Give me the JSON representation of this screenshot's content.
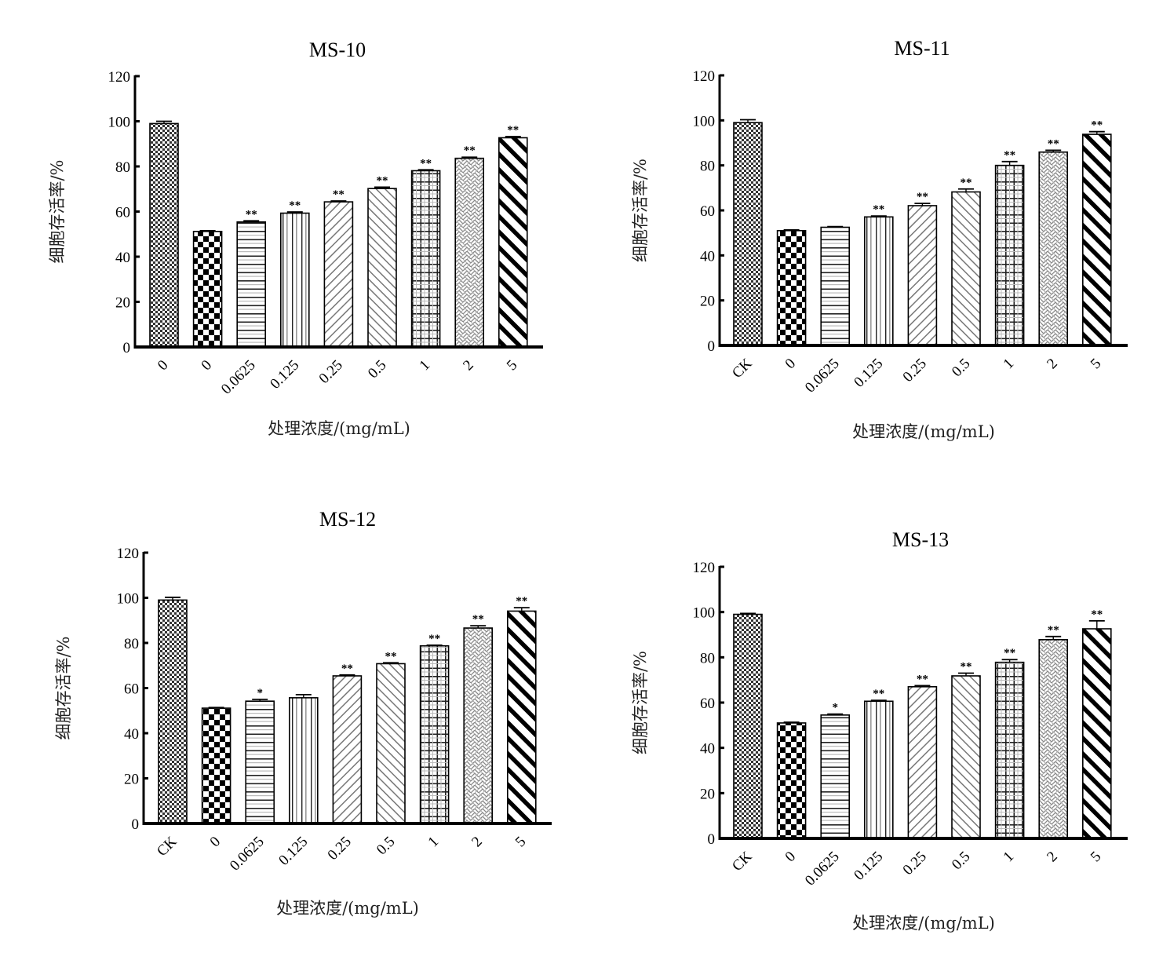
{
  "figure": {
    "panel_count": 4
  },
  "chart_data": [
    {
      "type": "bar",
      "title": "MS-10",
      "xlabel": "处理浓度/(mg/mL)",
      "ylabel": "细胞存活率/%",
      "ylim": [
        0,
        120
      ],
      "yticks": [
        0,
        20,
        40,
        60,
        80,
        100,
        120
      ],
      "grid": false,
      "categories": [
        "0",
        "0",
        "0.0625",
        "0.125",
        "0.25",
        "0.5",
        "1",
        "2",
        "5"
      ],
      "values": [
        99,
        51.2,
        55.4,
        59.3,
        64.3,
        70.2,
        78.1,
        83.6,
        92.7
      ],
      "errors": [
        1.0,
        0.3,
        0.5,
        0.5,
        0.4,
        0.6,
        0.4,
        0.5,
        0.5
      ],
      "significance": [
        "",
        "",
        "**",
        "**",
        "**",
        "**",
        "**",
        "**",
        "**"
      ]
    },
    {
      "type": "bar",
      "title": "MS-11",
      "xlabel": "处理浓度/(mg/mL)",
      "ylabel": "细胞存活率/%",
      "ylim": [
        0,
        120
      ],
      "yticks": [
        0,
        20,
        40,
        60,
        80,
        100,
        120
      ],
      "grid": false,
      "categories": [
        "CK",
        "0",
        "0.0625",
        "0.125",
        "0.25",
        "0.5",
        "1",
        "2",
        "5"
      ],
      "values": [
        99,
        51,
        52.5,
        57.1,
        62.1,
        68.2,
        80.0,
        85.9,
        93.8
      ],
      "errors": [
        1.3,
        0.3,
        0.3,
        0.4,
        1.0,
        1.3,
        1.7,
        0.8,
        1.2
      ],
      "significance": [
        "",
        "",
        "",
        "**",
        "**",
        "**",
        "**",
        "**",
        "**"
      ]
    },
    {
      "type": "bar",
      "title": "MS-12",
      "xlabel": "处理浓度/(mg/mL)",
      "ylabel": "细胞存活率/%",
      "ylim": [
        0,
        120
      ],
      "yticks": [
        0,
        20,
        40,
        60,
        80,
        100,
        120
      ],
      "grid": false,
      "categories": [
        "CK",
        "0",
        "0.0625",
        "0.125",
        "0.25",
        "0.5",
        "1",
        "2",
        "5"
      ],
      "values": [
        99,
        51.1,
        54.2,
        55.7,
        65.4,
        70.8,
        78.7,
        86.6,
        94.1
      ],
      "errors": [
        1.2,
        0.3,
        0.8,
        1.4,
        0.4,
        0.4,
        0.3,
        1.0,
        1.5
      ],
      "significance": [
        "",
        "",
        "*",
        "",
        "**",
        "**",
        "**",
        "**",
        "**"
      ]
    },
    {
      "type": "bar",
      "title": "MS-13",
      "xlabel": "处理浓度/(mg/mL)",
      "ylabel": "细胞存活率/%",
      "ylim": [
        0,
        120
      ],
      "yticks": [
        0,
        20,
        40,
        60,
        80,
        100,
        120
      ],
      "grid": false,
      "categories": [
        "CK",
        "0",
        "0.0625",
        "0.125",
        "0.25",
        "0.5",
        "1",
        "2",
        "5"
      ],
      "values": [
        99,
        51,
        54.5,
        60.6,
        67.0,
        71.8,
        77.8,
        87.8,
        92.6
      ],
      "errors": [
        0.4,
        0.3,
        0.4,
        0.4,
        0.5,
        1.2,
        1.2,
        1.4,
        3.5
      ],
      "significance": [
        "",
        "",
        "*",
        "**",
        "**",
        "**",
        "**",
        "**",
        "**"
      ]
    }
  ],
  "bar_patterns": [
    "fine-checker",
    "coarse-checker",
    "horizontal-lines",
    "vertical-lines",
    "diagonal-right",
    "diagonal-left",
    "grid",
    "zigzag",
    "bold-diagonal"
  ],
  "colors": {
    "ink": "#000000",
    "mid_gray": "#888888",
    "background": "#ffffff"
  }
}
